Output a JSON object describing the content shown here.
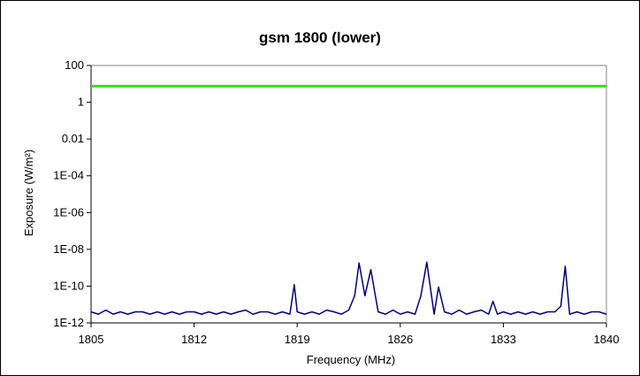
{
  "chart_data": {
    "type": "line",
    "title": "gsm 1800 (lower)",
    "xlabel": "Frequency (MHz)",
    "ylabel": "Exposure (W/m²)",
    "xlim": [
      1805,
      1840
    ],
    "ylim": [
      1e-12,
      100
    ],
    "y_scale": "log",
    "x_ticks": [
      1805,
      1812,
      1819,
      1826,
      1833,
      1840
    ],
    "x_tick_labels": [
      "1805",
      "1812",
      "1819",
      "1826",
      "1833",
      "1840"
    ],
    "y_ticks": [
      100,
      1,
      0.01,
      0.0001,
      1e-06,
      1e-08,
      1e-10,
      1e-12
    ],
    "y_tick_labels": [
      "100",
      "1",
      "0.01",
      "1E-04",
      "1E-06",
      "1E-08",
      "1E-10",
      "1E-12"
    ],
    "grid": false,
    "legend": "none",
    "series": [
      {
        "color": "#3ADC1E",
        "x": [
          1805,
          1840
        ],
        "y": [
          7.5,
          7.5
        ]
      },
      {
        "color": "#000080",
        "x": [
          1805,
          1805.5,
          1806,
          1806.5,
          1807,
          1807.5,
          1808,
          1808.5,
          1809,
          1809.5,
          1810,
          1810.5,
          1811,
          1811.5,
          1812,
          1812.5,
          1813,
          1813.5,
          1814,
          1814.5,
          1815,
          1815.5,
          1816,
          1816.5,
          1817,
          1817.5,
          1818,
          1818.5,
          1818.8,
          1819,
          1819.5,
          1820,
          1820.5,
          1821,
          1821.5,
          1822,
          1822.5,
          1822.9,
          1823.2,
          1823.6,
          1824,
          1824.5,
          1825,
          1825.5,
          1826,
          1826.5,
          1827,
          1827.4,
          1827.8,
          1828.3,
          1828.6,
          1829,
          1829.5,
          1830,
          1830.5,
          1831,
          1831.5,
          1832,
          1832.3,
          1832.6,
          1833,
          1833.5,
          1834,
          1834.5,
          1835,
          1835.5,
          1836,
          1836.5,
          1836.9,
          1837.2,
          1837.5,
          1838,
          1838.5,
          1839,
          1839.5,
          1840
        ],
        "y": [
          4e-12,
          3e-12,
          5e-12,
          3e-12,
          4e-12,
          3e-12,
          4e-12,
          4e-12,
          3e-12,
          4e-12,
          3e-12,
          4e-12,
          3e-12,
          4e-12,
          4e-12,
          3e-12,
          4e-12,
          3e-12,
          4e-12,
          3e-12,
          4e-12,
          5e-12,
          3e-12,
          4e-12,
          4e-12,
          3e-12,
          4e-12,
          3e-12,
          1.2e-10,
          4e-12,
          3e-12,
          4e-12,
          3e-12,
          5e-12,
          4e-12,
          3e-12,
          5e-12,
          3e-11,
          1.8e-09,
          3e-11,
          8e-10,
          4e-12,
          3e-12,
          5e-12,
          3e-12,
          4e-12,
          3e-12,
          3e-11,
          2e-09,
          3e-12,
          9e-11,
          4e-12,
          3e-12,
          5e-12,
          3e-12,
          4e-12,
          5e-12,
          3e-12,
          1.5e-11,
          3e-12,
          4e-12,
          3e-12,
          4e-12,
          3e-12,
          4e-12,
          3e-12,
          4e-12,
          4e-12,
          8e-12,
          1.2e-09,
          3e-12,
          4e-12,
          3e-12,
          4e-12,
          4e-12,
          3e-12
        ]
      }
    ]
  }
}
